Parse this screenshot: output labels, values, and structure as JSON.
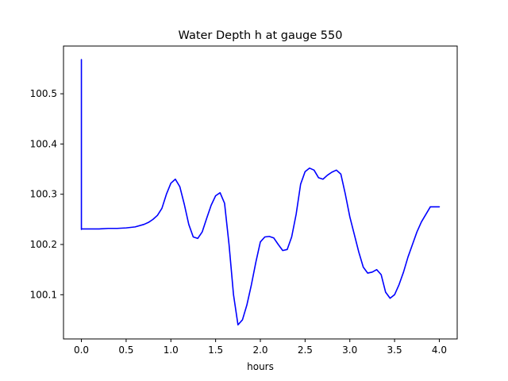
{
  "chart_data": {
    "type": "line",
    "title": "Water Depth h at gauge 550",
    "xlabel": "hours",
    "ylabel": "",
    "xlim": [
      -0.2,
      4.2
    ],
    "ylim": [
      100.012,
      100.595
    ],
    "xticks": [
      0.0,
      0.5,
      1.0,
      1.5,
      2.0,
      2.5,
      3.0,
      3.5,
      4.0
    ],
    "xtick_labels": [
      "0.0",
      "0.5",
      "1.0",
      "1.5",
      "2.0",
      "2.5",
      "3.0",
      "3.5",
      "4.0"
    ],
    "yticks": [
      100.1,
      100.2,
      100.3,
      100.4,
      100.5
    ],
    "ytick_labels": [
      "100.1",
      "100.2",
      "100.3",
      "100.4",
      "100.5"
    ],
    "grid": false,
    "series": [
      {
        "color": "#0000ff",
        "x": [
          0.0,
          0.0,
          0.0,
          0.1,
          0.2,
          0.3,
          0.4,
          0.5,
          0.6,
          0.7,
          0.75,
          0.8,
          0.85,
          0.9,
          0.95,
          1.0,
          1.05,
          1.1,
          1.15,
          1.2,
          1.25,
          1.3,
          1.35,
          1.4,
          1.45,
          1.5,
          1.55,
          1.6,
          1.65,
          1.7,
          1.75,
          1.8,
          1.85,
          1.9,
          1.95,
          2.0,
          2.05,
          2.1,
          2.15,
          2.2,
          2.25,
          2.3,
          2.35,
          2.4,
          2.45,
          2.5,
          2.55,
          2.6,
          2.65,
          2.7,
          2.75,
          2.8,
          2.85,
          2.9,
          2.95,
          3.0,
          3.05,
          3.1,
          3.15,
          3.2,
          3.25,
          3.3,
          3.35,
          3.4,
          3.45,
          3.5,
          3.55,
          3.6,
          3.65,
          3.7,
          3.75,
          3.8,
          3.85,
          3.9,
          3.95,
          4.0
        ],
        "y": [
          100.23,
          100.568,
          100.231,
          100.231,
          100.231,
          100.232,
          100.232,
          100.233,
          100.235,
          100.24,
          100.244,
          100.25,
          100.258,
          100.272,
          100.3,
          100.322,
          100.33,
          100.315,
          100.28,
          100.24,
          100.215,
          100.212,
          100.225,
          100.252,
          100.278,
          100.297,
          100.303,
          100.282,
          100.2,
          100.1,
          100.04,
          100.05,
          100.08,
          100.12,
          100.165,
          100.205,
          100.215,
          100.216,
          100.213,
          100.2,
          100.188,
          100.19,
          100.215,
          100.26,
          100.32,
          100.345,
          100.352,
          100.348,
          100.333,
          100.33,
          100.338,
          100.344,
          100.348,
          100.34,
          100.3,
          100.255,
          100.22,
          100.185,
          100.155,
          100.143,
          100.145,
          100.15,
          100.14,
          100.105,
          100.093,
          100.1,
          100.12,
          100.145,
          100.175,
          100.2,
          100.225,
          100.245,
          100.26,
          100.275,
          100.275,
          100.275
        ]
      }
    ]
  }
}
